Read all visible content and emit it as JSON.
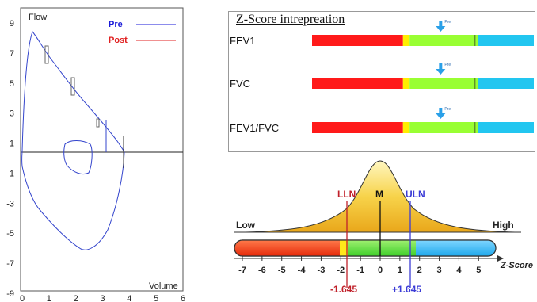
{
  "flow_volume": {
    "y_axis_label": "Flow",
    "x_axis_label": "Volume",
    "y_ticks": [
      "9",
      "7",
      "5",
      "3",
      "1",
      "-1",
      "-3",
      "-5",
      "-7",
      "-9"
    ],
    "x_ticks": [
      "0",
      "1",
      "2",
      "3",
      "4",
      "5",
      "6"
    ],
    "legend": [
      {
        "label": "Pre",
        "color": "#1a1ad8"
      },
      {
        "label": "Post",
        "color": "#e02020"
      }
    ]
  },
  "zscore_panel": {
    "title": "Z-Score intrepreation",
    "marker_label": "Pre",
    "rows": [
      {
        "label": "FEV1",
        "marker_z": 0.3
      },
      {
        "label": "FVC",
        "marker_z": 0.3
      },
      {
        "label": "FEV1/FVC",
        "marker_z": 0.3
      }
    ],
    "band_colors": {
      "red": "#ff1a1a",
      "yellow": "#ffee00",
      "green": "#99ff33",
      "blue": "#22c6f0"
    }
  },
  "bell_diagram": {
    "low_label": "Low",
    "high_label": "High",
    "lln_label": "LLN",
    "mean_label": "M",
    "uln_label": "ULN",
    "axis_label": "Z-Score",
    "ticks": [
      "-7",
      "-6",
      "-5",
      "-4",
      "-3",
      "-2",
      "-1",
      "0",
      "1",
      "2",
      "3",
      "4",
      "5"
    ],
    "lln_value": "-1.645",
    "uln_value": "+1.645",
    "lln_color": "#c0202a",
    "uln_color": "#3b3bd6"
  },
  "chart_data": [
    {
      "type": "line",
      "title": "",
      "xlabel": "Volume",
      "ylabel": "Flow",
      "xlim": [
        0,
        6
      ],
      "ylim": [
        -9,
        9
      ],
      "grid": false,
      "series": [
        {
          "name": "Pre",
          "color": "#1a1ad8"
        },
        {
          "name": "Post",
          "color": "#e02020"
        }
      ]
    },
    {
      "type": "bar",
      "title": "Z-Score intrepreation",
      "categories": [
        "FEV1",
        "FVC",
        "FEV1/FVC"
      ],
      "series": [
        {
          "name": "Pre",
          "values": [
            0.3,
            0.3,
            0.3
          ]
        }
      ]
    },
    {
      "type": "area",
      "title": "",
      "xlabel": "Z-Score",
      "xlim": [
        -7,
        5
      ],
      "annotations": [
        "LLN",
        "M",
        "ULN",
        "-1.645",
        "+1.645",
        "Low",
        "High"
      ]
    }
  ]
}
